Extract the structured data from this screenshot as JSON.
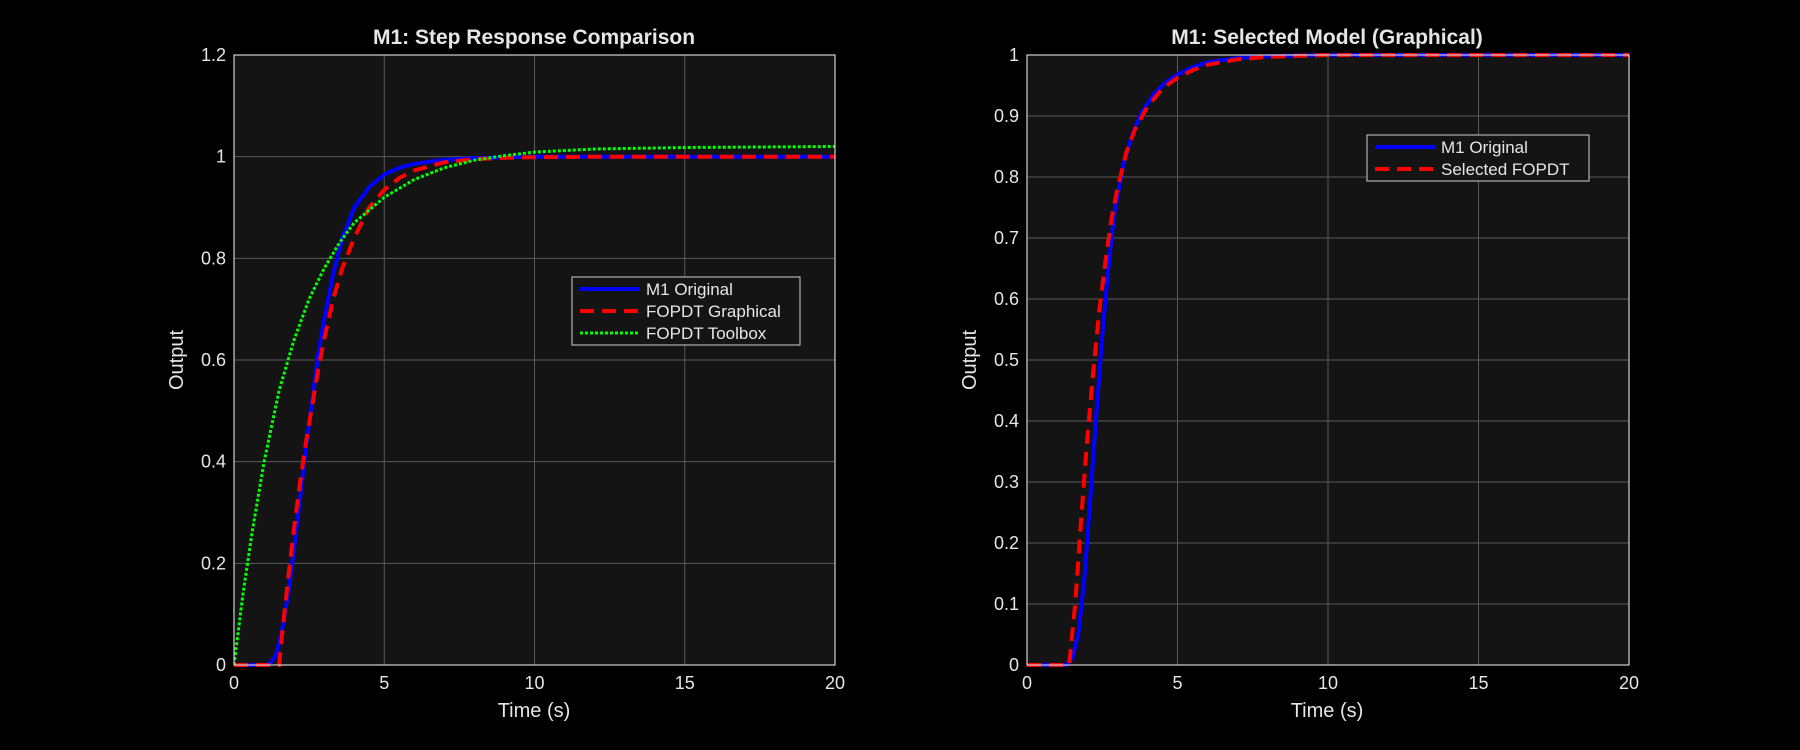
{
  "figure": {
    "background": "#000000",
    "axes_background": "#141414",
    "grid_color": "#5a5a5a",
    "text_color": "#e6e6e6"
  },
  "chart_data": [
    {
      "type": "line",
      "title": "M1: Step Response Comparison",
      "xlabel": "Time (s)",
      "ylabel": "Output",
      "xlim": [
        0,
        20
      ],
      "ylim": [
        0,
        1.2
      ],
      "xticks": [
        0,
        5,
        10,
        15,
        20
      ],
      "yticks": [
        0,
        0.2,
        0.4,
        0.6,
        0.8,
        1,
        1.2
      ],
      "xtick_labels": [
        "0",
        "5",
        "10",
        "15",
        "20"
      ],
      "ytick_labels": [
        "0",
        "0.2",
        "0.4",
        "0.6",
        "0.8",
        "1",
        "1.2"
      ],
      "grid": true,
      "legend_position": "center-right",
      "series": [
        {
          "name": "M1 Original",
          "color": "#0000ff",
          "style": "solid",
          "x": [
            0,
            1.0,
            1.2,
            1.4,
            1.6,
            1.8,
            2.0,
            2.2,
            2.4,
            2.6,
            2.8,
            3.0,
            3.3,
            3.6,
            4.0,
            4.5,
            5.0,
            5.5,
            6.0,
            7.0,
            8.0,
            9.0,
            10,
            12,
            15,
            20
          ],
          "y": [
            0,
            0,
            0.003,
            0.02,
            0.07,
            0.14,
            0.23,
            0.33,
            0.43,
            0.52,
            0.61,
            0.68,
            0.77,
            0.84,
            0.9,
            0.94,
            0.965,
            0.978,
            0.986,
            0.994,
            0.997,
            0.999,
            1.0,
            1.0,
            1.0,
            1.0
          ]
        },
        {
          "name": "FOPDT Graphical",
          "color": "#ff0000",
          "style": "dashed",
          "x": [
            0,
            1.5,
            1.6,
            1.8,
            2.0,
            2.2,
            2.4,
            2.6,
            2.8,
            3.0,
            3.3,
            3.6,
            4.0,
            4.5,
            5.0,
            5.5,
            6.0,
            7.0,
            8.0,
            9.0,
            10,
            12,
            15,
            20
          ],
          "y": [
            0,
            0,
            0.06,
            0.17,
            0.27,
            0.36,
            0.44,
            0.51,
            0.58,
            0.64,
            0.72,
            0.78,
            0.84,
            0.9,
            0.935,
            0.958,
            0.973,
            0.989,
            0.995,
            0.998,
            0.999,
            1.0,
            1.0,
            1.0
          ]
        },
        {
          "name": "FOPDT Toolbox",
          "color": "#00ff00",
          "style": "dotted",
          "x": [
            0,
            0.3,
            0.6,
            1.0,
            1.5,
            2.0,
            2.5,
            3.0,
            3.5,
            4.0,
            5.0,
            6.0,
            7.0,
            8.0,
            9.0,
            10,
            12,
            15,
            20
          ],
          "y": [
            0,
            0.14,
            0.26,
            0.4,
            0.54,
            0.64,
            0.72,
            0.78,
            0.83,
            0.87,
            0.92,
            0.955,
            0.978,
            0.993,
            1.002,
            1.009,
            1.015,
            1.018,
            1.02
          ]
        }
      ]
    },
    {
      "type": "line",
      "title": "M1: Selected Model (Graphical)",
      "xlabel": "Time (s)",
      "ylabel": "Output",
      "xlim": [
        0,
        20
      ],
      "ylim": [
        0,
        1
      ],
      "xticks": [
        0,
        5,
        10,
        15,
        20
      ],
      "yticks": [
        0,
        0.1,
        0.2,
        0.3,
        0.4,
        0.5,
        0.6,
        0.7,
        0.8,
        0.9,
        1
      ],
      "xtick_labels": [
        "0",
        "5",
        "10",
        "15",
        "20"
      ],
      "ytick_labels": [
        "0",
        "0.1",
        "0.2",
        "0.3",
        "0.4",
        "0.5",
        "0.6",
        "0.7",
        "0.8",
        "0.9",
        "1"
      ],
      "grid": true,
      "legend_position": "top-right",
      "series": [
        {
          "name": "M1 Original",
          "color": "#0000ff",
          "style": "solid",
          "x": [
            0,
            1.3,
            1.5,
            1.7,
            1.9,
            2.1,
            2.3,
            2.5,
            2.7,
            2.9,
            3.2,
            3.5,
            3.8,
            4.2,
            4.6,
            5.0,
            5.5,
            6.0,
            7.0,
            8.0,
            10,
            15,
            20
          ],
          "y": [
            0,
            0,
            0.01,
            0.05,
            0.14,
            0.27,
            0.41,
            0.54,
            0.65,
            0.74,
            0.82,
            0.87,
            0.905,
            0.935,
            0.955,
            0.968,
            0.98,
            0.988,
            0.995,
            0.998,
            1.0,
            1.0,
            1.0
          ]
        },
        {
          "name": "Selected FOPDT",
          "color": "#ff0000",
          "style": "dashed",
          "x": [
            0,
            1.4,
            1.6,
            1.8,
            2.0,
            2.2,
            2.4,
            2.6,
            2.8,
            3.0,
            3.3,
            3.6,
            4.0,
            4.5,
            5.0,
            5.5,
            6.0,
            7.0,
            8.0,
            10,
            15,
            20
          ],
          "y": [
            0,
            0,
            0.1,
            0.24,
            0.37,
            0.48,
            0.58,
            0.66,
            0.73,
            0.78,
            0.84,
            0.88,
            0.915,
            0.945,
            0.963,
            0.975,
            0.984,
            0.993,
            0.997,
            1.0,
            1.0,
            1.0
          ]
        }
      ]
    }
  ]
}
